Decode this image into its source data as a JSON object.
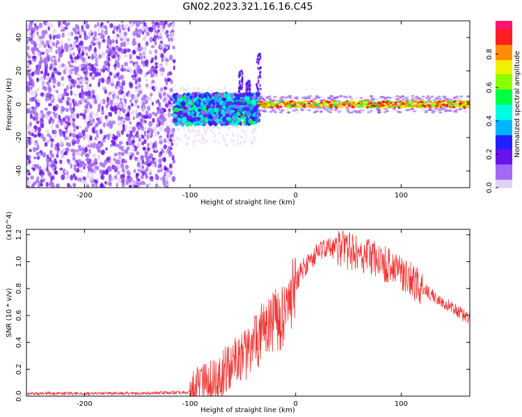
{
  "title": "GN02.2023.321.16.16.C45",
  "colors": {
    "snr_line": "#f03434",
    "colorbar_stops": [
      "#e2d2f7",
      "#a368f5",
      "#6a12ee",
      "#2020ff",
      "#00b4ff",
      "#00ffe0",
      "#00ff40",
      "#8cff00",
      "#f0f000",
      "#ff8c00",
      "#ff1e1e",
      "#ff146e"
    ]
  },
  "chart_data": [
    {
      "type": "heatmap",
      "xlabel": "Height of straight line (km)",
      "ylabel": "Frequency (Hz)",
      "xlim": [
        -255,
        165
      ],
      "ylim": [
        -50,
        50
      ],
      "xticks": [
        -200,
        -100,
        0,
        100
      ],
      "yticks": [
        -40,
        -20,
        0,
        20,
        40
      ],
      "colorbar": {
        "label": "Normalized spectral amplitude",
        "range": [
          0,
          1
        ],
        "ticks": [
          "0.0",
          "0.2",
          "0.4",
          "0.6",
          "0.8"
        ]
      },
      "regions": [
        {
          "x": [
            -255,
            -115
          ],
          "freq_span": [
            -50,
            50
          ],
          "amplitude": "low",
          "pattern": "scattered noise"
        },
        {
          "x": [
            -115,
            -35
          ],
          "freq_span": [
            -12,
            6
          ],
          "amplitude": "medium"
        },
        {
          "x": [
            -35,
            165
          ],
          "freq_span": [
            -2,
            2
          ],
          "amplitude": "high",
          "pattern": "narrow band near 0 Hz"
        }
      ]
    },
    {
      "type": "line",
      "xlabel": "Height of straight line (km)",
      "ylabel": "SNR (10 * v/v)",
      "y_multiplier": "(x10^4)",
      "xlim": [
        -255,
        165
      ],
      "ylim": [
        0,
        1.24
      ],
      "xticks": [
        -200,
        -100,
        0,
        100
      ],
      "yticks": [
        "0.0",
        "0.2",
        "0.4",
        "0.6",
        "0.8",
        "1.0",
        "1.2"
      ],
      "series": [
        {
          "x": [
            -255,
            -200,
            -150,
            -100,
            -90,
            -80,
            -70,
            -60,
            -50,
            -40,
            -30,
            -20,
            -10,
            0,
            10,
            20,
            30,
            40,
            50,
            60,
            70,
            80,
            90,
            100,
            110,
            120,
            130,
            140,
            150,
            165
          ],
          "y": [
            0.02,
            0.02,
            0.02,
            0.03,
            0.06,
            0.1,
            0.16,
            0.22,
            0.3,
            0.38,
            0.5,
            0.55,
            0.6,
            0.85,
            0.98,
            1.06,
            1.1,
            1.1,
            1.08,
            1.06,
            1.03,
            1.0,
            0.96,
            0.91,
            0.86,
            0.8,
            0.75,
            0.7,
            0.65,
            0.57
          ]
        }
      ]
    }
  ]
}
